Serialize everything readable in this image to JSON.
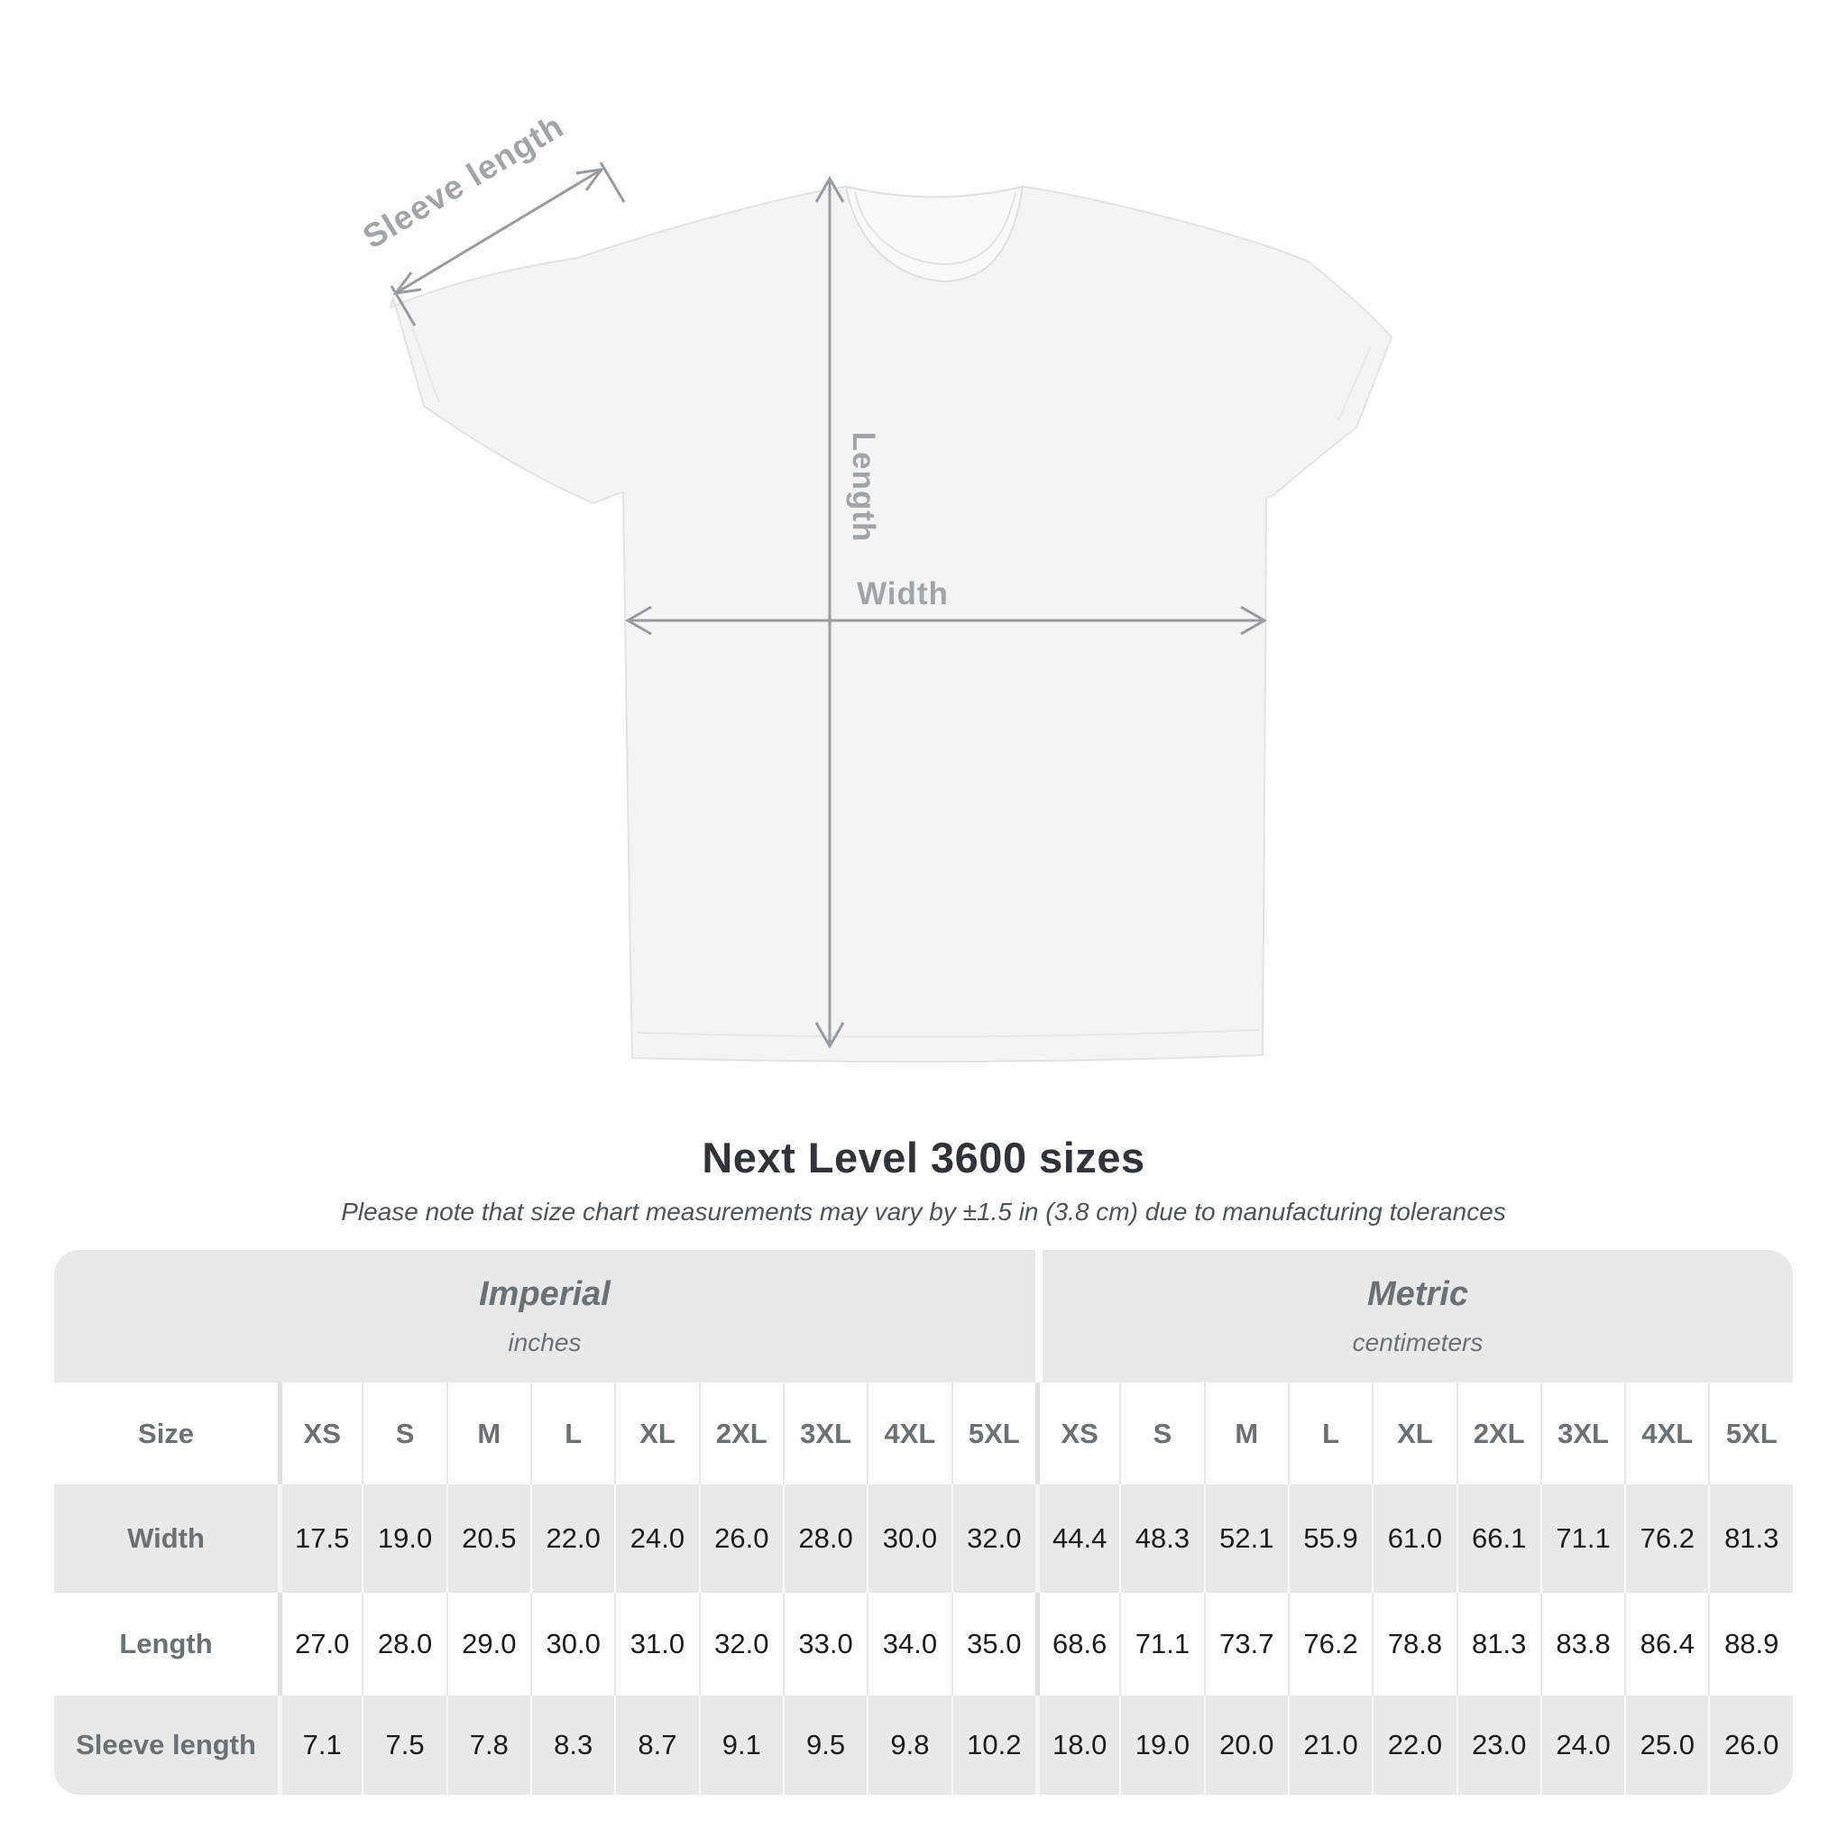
{
  "diagram": {
    "sleeve_label": "Sleeve length",
    "length_label": "Length",
    "width_label": "Width",
    "line_color": "#999c9f",
    "label_color": "#a2a5a8"
  },
  "title": "Next Level 3600 sizes",
  "subtitle": "Please note that size chart measurements may vary by ±1.5 in (3.8 cm) due to manufacturing tolerances",
  "table": {
    "size_column_header": "Size",
    "groups": [
      {
        "name": "Imperial",
        "unit": "inches"
      },
      {
        "name": "Metric",
        "unit": "centimeters"
      }
    ],
    "sizes": [
      "XS",
      "S",
      "M",
      "L",
      "XL",
      "2XL",
      "3XL",
      "4XL",
      "5XL"
    ]
  },
  "chart_data": {
    "type": "table",
    "title": "Next Level 3600 sizes",
    "note": "Measurements may vary by ±1.5 in (3.8 cm) due to manufacturing tolerances",
    "categories": [
      "XS",
      "S",
      "M",
      "L",
      "XL",
      "2XL",
      "3XL",
      "4XL",
      "5XL"
    ],
    "series": [
      {
        "name": "Width",
        "unit": "inches",
        "values": [
          17.5,
          19.0,
          20.5,
          22.0,
          24.0,
          26.0,
          28.0,
          30.0,
          32.0
        ]
      },
      {
        "name": "Length",
        "unit": "inches",
        "values": [
          27.0,
          28.0,
          29.0,
          30.0,
          31.0,
          32.0,
          33.0,
          34.0,
          35.0
        ]
      },
      {
        "name": "Sleeve length",
        "unit": "inches",
        "values": [
          7.1,
          7.5,
          7.8,
          8.3,
          8.7,
          9.1,
          9.5,
          9.8,
          10.2
        ]
      },
      {
        "name": "Width",
        "unit": "centimeters",
        "values": [
          44.4,
          48.3,
          52.1,
          55.9,
          61.0,
          66.1,
          71.1,
          76.2,
          81.3
        ]
      },
      {
        "name": "Length",
        "unit": "centimeters",
        "values": [
          68.6,
          71.1,
          73.7,
          76.2,
          78.8,
          81.3,
          83.8,
          86.4,
          88.9
        ]
      },
      {
        "name": "Sleeve length",
        "unit": "centimeters",
        "values": [
          18.0,
          19.0,
          20.0,
          21.0,
          22.0,
          23.0,
          24.0,
          25.0,
          26.0
        ]
      }
    ]
  }
}
